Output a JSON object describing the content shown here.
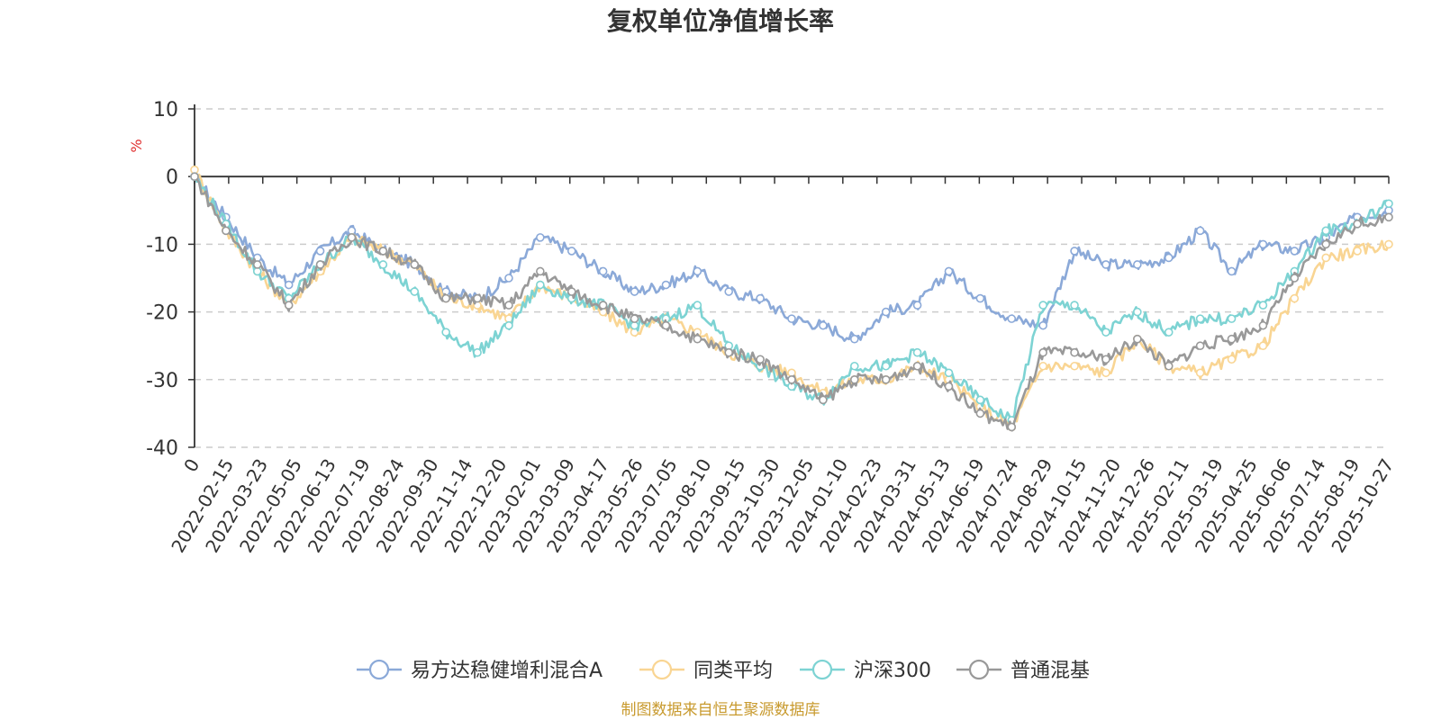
{
  "chart_data": {
    "type": "line",
    "title": "复权单位净值增长率",
    "ylabel": "%",
    "ylim": [
      -40,
      10
    ],
    "yticks": [
      10,
      0,
      -10,
      -20,
      -30,
      -40
    ],
    "x_ticks": [
      "0",
      "2022-02-15",
      "2022-03-23",
      "2022-05-05",
      "2022-06-13",
      "2022-07-19",
      "2022-08-24",
      "2022-09-30",
      "2022-11-14",
      "2022-12-20",
      "2023-02-01",
      "2023-03-09",
      "2023-04-17",
      "2023-05-26",
      "2023-07-05",
      "2023-08-10",
      "2023-09-15",
      "2023-10-30",
      "2023-12-05",
      "2024-01-10",
      "2024-02-23",
      "2024-03-31",
      "2024-05-13",
      "2024-06-19",
      "2024-07-24",
      "2024-08-29",
      "2024-10-15",
      "2024-11-20",
      "2024-12-26",
      "2025-02-11",
      "2025-03-19",
      "2025-04-25",
      "2025-06-06",
      "2025-07-14",
      "2025-08-19",
      "2025-10-27"
    ],
    "grid": true,
    "legend_position": "bottom",
    "series": [
      {
        "name": "易方达稳健增利混合A",
        "color": "#8ba9d8",
        "values": [
          0,
          -6,
          -12,
          -16,
          -11,
          -8,
          -11,
          -13,
          -17,
          -18,
          -15,
          -9,
          -11,
          -14,
          -17,
          -16,
          -14,
          -17,
          -18,
          -21,
          -22,
          -24,
          -20,
          -19,
          -14,
          -18,
          -21,
          -22,
          -11,
          -13,
          -13,
          -12,
          -8,
          -14,
          -10,
          -11,
          -9,
          -6,
          -5
        ]
      },
      {
        "name": "同类平均",
        "color": "#f9d593",
        "values": [
          1,
          -8,
          -14,
          -19,
          -14,
          -9,
          -11,
          -13,
          -18,
          -19,
          -21,
          -16,
          -18,
          -20,
          -23,
          -21,
          -23,
          -26,
          -28,
          -29,
          -32,
          -30,
          -30,
          -28,
          -30,
          -34,
          -37,
          -28,
          -28,
          -29,
          -24,
          -28,
          -29,
          -27,
          -25,
          -18,
          -12,
          -11,
          -10
        ]
      },
      {
        "name": "沪深300",
        "color": "#7dd3d3",
        "values": [
          0,
          -7,
          -14,
          -18,
          -13,
          -9,
          -13,
          -17,
          -23,
          -26,
          -22,
          -16,
          -18,
          -19,
          -22,
          -21,
          -19,
          -25,
          -28,
          -31,
          -33,
          -28,
          -28,
          -26,
          -29,
          -33,
          -36,
          -19,
          -19,
          -23,
          -20,
          -23,
          -21,
          -21,
          -19,
          -14,
          -8,
          -7,
          -4
        ]
      },
      {
        "name": "普通混基",
        "color": "#999999",
        "values": [
          0,
          -8,
          -13,
          -19,
          -13,
          -9,
          -11,
          -13,
          -18,
          -18,
          -19,
          -14,
          -17,
          -19,
          -21,
          -22,
          -24,
          -26,
          -27,
          -30,
          -33,
          -30,
          -30,
          -28,
          -31,
          -35,
          -37,
          -26,
          -26,
          -27,
          -24,
          -28,
          -25,
          -24,
          -22,
          -15,
          -10,
          -7,
          -6
        ]
      }
    ]
  },
  "footer": {
    "source": "制图数据来自恒生聚源数据库"
  }
}
